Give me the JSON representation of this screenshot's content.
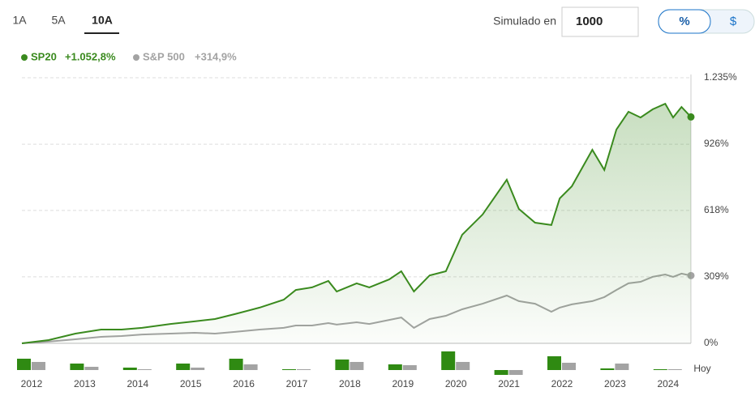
{
  "tabs": [
    "1A",
    "5A",
    "10A"
  ],
  "active_tab": "10A",
  "simulated_label": "Simulado en",
  "simulated_value": "1000",
  "toggle": [
    "%",
    "$"
  ],
  "active_toggle": "%",
  "legend_values": [
    "+1.052,8%",
    "+314,9%"
  ],
  "chart_data": [
    {
      "type": "line",
      "xlim": [
        2012,
        2024.75
      ],
      "ylim": [
        0,
        1235
      ],
      "yticks": [
        {
          "value": 0,
          "label": "0%"
        },
        {
          "value": 309,
          "label": "309%"
        },
        {
          "value": 618,
          "label": "618%"
        },
        {
          "value": 926,
          "label": "926%"
        },
        {
          "value": 1235,
          "label": "1.235%"
        }
      ],
      "grid": true,
      "x": [
        2012.0,
        2012.51,
        2013.02,
        2013.51,
        2013.9,
        2014.29,
        2014.83,
        2015.29,
        2015.68,
        2016.06,
        2016.53,
        2016.99,
        2017.22,
        2017.53,
        2017.84,
        2018.0,
        2018.38,
        2018.62,
        2019.0,
        2019.23,
        2019.47,
        2019.77,
        2020.08,
        2020.39,
        2020.78,
        2021.24,
        2021.47,
        2021.78,
        2022.09,
        2022.25,
        2022.48,
        2022.87,
        2023.1,
        2023.33,
        2023.56,
        2023.79,
        2024.02,
        2024.26,
        2024.41,
        2024.57,
        2024.75
      ],
      "series": [
        {
          "name": "SP20",
          "color": "#3a8a1e",
          "values": [
            0,
            15,
            45,
            64,
            64,
            72,
            90,
            102,
            113,
            136,
            166,
            203,
            248,
            260,
            290,
            241,
            279,
            260,
            297,
            335,
            241,
            316,
            335,
            505,
            599,
            761,
            625,
            561,
            550,
            674,
            730,
            900,
            806,
            994,
            1077,
            1050,
            1088,
            1114,
            1050,
            1099,
            1052.8
          ]
        },
        {
          "name": "S&P 500",
          "color": "#a3a3a3",
          "values": [
            0,
            8,
            19,
            30,
            34,
            41,
            45,
            49,
            45,
            53,
            64,
            72,
            83,
            83,
            94,
            87,
            98,
            90,
            109,
            120,
            72,
            113,
            128,
            158,
            184,
            222,
            196,
            184,
            147,
            166,
            181,
            196,
            215,
            248,
            279,
            286,
            309,
            320,
            309,
            324,
            314.9
          ]
        }
      ]
    },
    {
      "type": "bar",
      "ylim": [
        -40,
        60
      ],
      "categories": [
        "2012",
        "2013",
        "2014",
        "2015",
        "2016",
        "2017",
        "2018",
        "2019",
        "2020",
        "2021",
        "2022",
        "2023",
        "2024",
        "Hoy"
      ],
      "series": [
        {
          "name": "SP20",
          "color": "#2f8a12",
          "values": [
            28,
            16,
            6,
            16,
            28,
            2,
            26,
            14,
            46,
            -12,
            34,
            4,
            2,
            null
          ]
        },
        {
          "name": "S&P 500",
          "color": "#a3a3a3",
          "values": [
            20,
            8,
            2,
            6,
            14,
            2,
            20,
            12,
            20,
            -12,
            18,
            16,
            2,
            null
          ]
        }
      ]
    }
  ]
}
